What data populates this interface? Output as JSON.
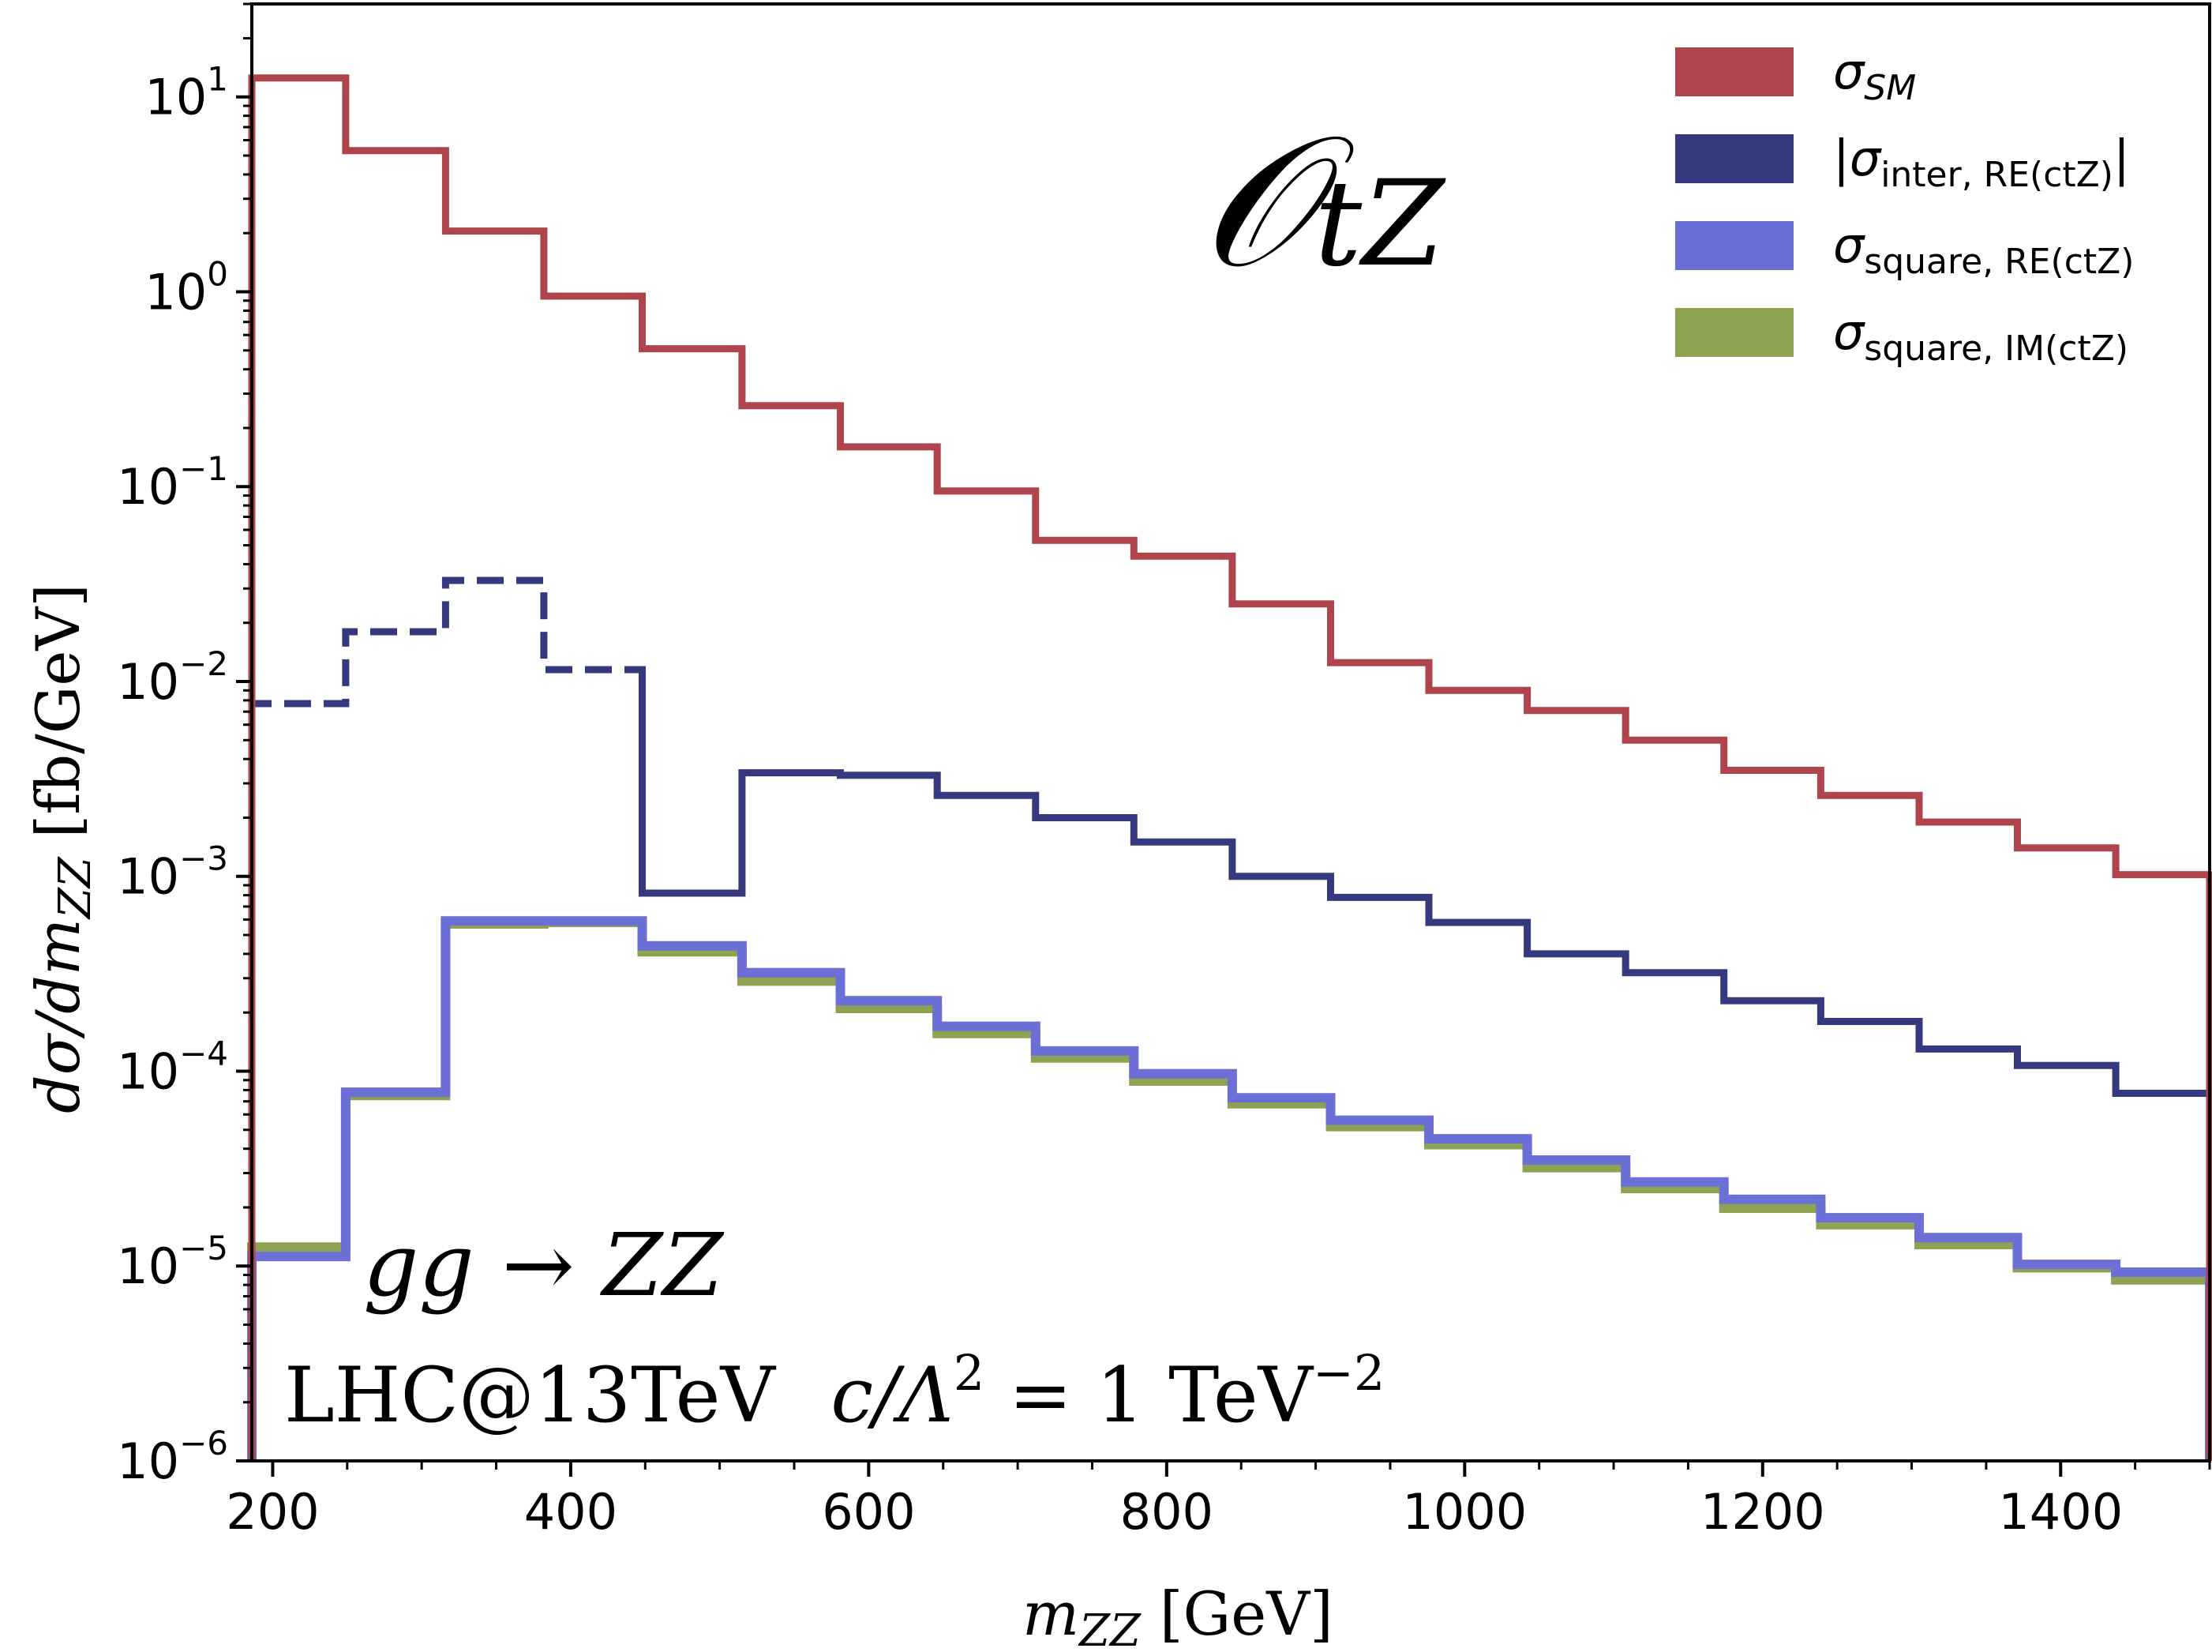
{
  "chart_data": {
    "type": "step",
    "title": "",
    "operator_label": "𝒪",
    "operator_subscript": "tZ",
    "xlabel": "m",
    "xlabel_subscript": "ZZ",
    "xlabel_unit": "[GeV]",
    "ylabel": "dσ/dm",
    "ylabel_subscript": "ZZ",
    "ylabel_unit": "[fb/GeV]",
    "xlim": [
      186,
      1500
    ],
    "ylim": [
      1e-06,
      30
    ],
    "yscale": "log",
    "x_ticks": [
      "200",
      "400",
      "600",
      "800",
      "1000",
      "1200",
      "1400"
    ],
    "y_ticks": [
      {
        "base": "10",
        "exp": "1"
      },
      {
        "base": "10",
        "exp": "0"
      },
      {
        "base": "10",
        "exp": "−1"
      },
      {
        "base": "10",
        "exp": "−2"
      },
      {
        "base": "10",
        "exp": "−3"
      },
      {
        "base": "10",
        "exp": "−4"
      },
      {
        "base": "10",
        "exp": "−5"
      },
      {
        "base": "10",
        "exp": "−6"
      }
    ],
    "bin_edges": [
      186,
      249,
      316,
      382,
      448,
      515,
      581,
      646,
      712,
      778,
      844,
      910,
      976,
      1042,
      1108,
      1174,
      1239,
      1305,
      1371,
      1437,
      1500
    ],
    "series": [
      {
        "name": "σ",
        "subscript": "SM",
        "label_style": "italic_sub",
        "color": "#b0444c",
        "dash": "solid",
        "values": [
          12.5,
          5.3,
          2.05,
          0.95,
          0.51,
          0.26,
          0.16,
          0.095,
          0.053,
          0.044,
          0.025,
          0.0125,
          0.009,
          0.0071,
          0.005,
          0.0035,
          0.0026,
          0.0019,
          0.0014,
          0.00102
        ]
      },
      {
        "name": "|σ",
        "subscript": "inter, RE(ctZ)",
        "suffix": "|",
        "color": "#353a7e",
        "dash_segments_until_bin": 4,
        "values": [
          0.0077,
          0.018,
          0.033,
          0.0115,
          0.00082,
          0.0034,
          0.0033,
          0.0026,
          0.002,
          0.0015,
          0.001,
          0.00078,
          0.00058,
          0.0004,
          0.00032,
          0.00023,
          0.00018,
          0.00013,
          0.000107,
          7.7e-05
        ]
      },
      {
        "name": "σ",
        "subscript": "square, RE(ctZ)",
        "color": "#6b6fd6",
        "dash": "solid",
        "values": [
          1.12e-05,
          7.8e-05,
          0.00059,
          0.00059,
          0.00044,
          0.00032,
          0.00023,
          0.00017,
          0.000127,
          9.7e-05,
          7.3e-05,
          5.6e-05,
          4.5e-05,
          3.5e-05,
          2.7e-05,
          2.2e-05,
          1.77e-05,
          1.4e-05,
          1.02e-05,
          9.3e-06
        ]
      },
      {
        "name": "σ",
        "subscript": "square, IM(ctZ)",
        "color": "#8da352",
        "dash": "solid",
        "values": [
          1.25e-05,
          7.5e-05,
          0.00057,
          0.00058,
          0.00041,
          0.00029,
          0.00021,
          0.000156,
          0.000117,
          8.9e-05,
          6.8e-05,
          5.2e-05,
          4.2e-05,
          3.2e-05,
          2.5e-05,
          1.98e-05,
          1.63e-05,
          1.29e-05,
          9.8e-06,
          8.5e-06
        ]
      }
    ],
    "annotations": {
      "process": "gg → ZZ",
      "collider": "LHC@13TeV",
      "coupling_prefix": "c/Λ",
      "coupling_sq": "2",
      "coupling_eq": " = 1 TeV",
      "coupling_exp": "−2"
    },
    "legend_position": "top-right"
  }
}
